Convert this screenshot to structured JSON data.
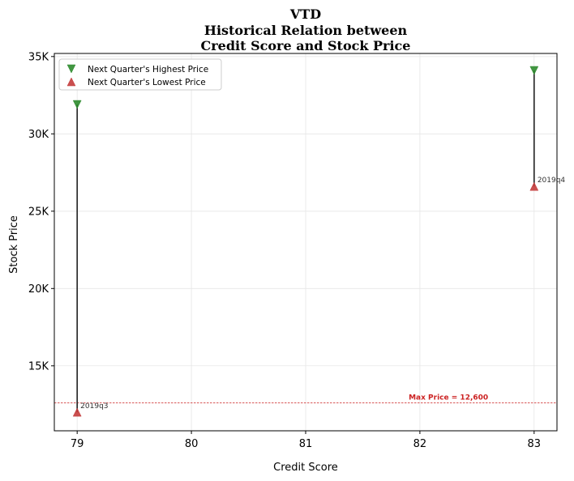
{
  "chart_data": {
    "type": "scatter",
    "title_lines": [
      "VTD",
      "Historical Relation between",
      "Credit Score and Stock Price"
    ],
    "xlabel": "Credit Score",
    "ylabel": "Stock Price",
    "xlim": [
      78.8,
      83.2
    ],
    "ylim": [
      10800,
      35200
    ],
    "x_ticks": [
      79,
      80,
      81,
      82,
      83
    ],
    "x_tick_labels": [
      "79",
      "80",
      "81",
      "82",
      "83"
    ],
    "y_ticks": [
      15000,
      20000,
      25000,
      30000,
      35000
    ],
    "y_tick_labels": [
      "15K",
      "20K",
      "25K",
      "30K",
      "35K"
    ],
    "grid": true,
    "legend_position": "top-left",
    "series": [
      {
        "name": "Next Quarter's Highest Price",
        "marker": "triangle-down",
        "color": "#2e8b2e",
        "points": [
          {
            "x": 79,
            "y": 31900
          },
          {
            "x": 83,
            "y": 34100
          }
        ]
      },
      {
        "name": "Next Quarter's Lowest Price",
        "marker": "triangle-up",
        "color": "#c43c3c",
        "points": [
          {
            "x": 79,
            "y": 12000
          },
          {
            "x": 83,
            "y": 26600
          }
        ]
      }
    ],
    "point_labels": [
      {
        "x": 79,
        "y": 12000,
        "text": "2019q3"
      },
      {
        "x": 83,
        "y": 26600,
        "text": "2019q4"
      }
    ],
    "reference_line": {
      "y": 12600,
      "label": "Max Price = 12,600",
      "label_x": 82.25,
      "color": "#cc2222"
    }
  }
}
